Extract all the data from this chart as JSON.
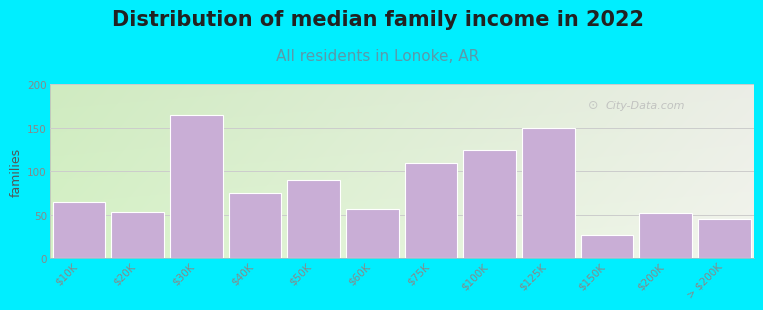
{
  "title": "Distribution of median family income in 2022",
  "subtitle": "All residents in Lonoke, AR",
  "ylabel": "families",
  "categories": [
    "$10K",
    "$20K",
    "$30K",
    "$40K",
    "$50K",
    "$60K",
    "$75K",
    "$100K",
    "$125K",
    "$150K",
    "$200K",
    "> $200K"
  ],
  "values": [
    65,
    53,
    165,
    75,
    90,
    57,
    110,
    125,
    150,
    27,
    52,
    45
  ],
  "bar_color": "#c9aed6",
  "bar_edgecolor": "#c9aed6",
  "background_outer": "#00eeff",
  "background_plot_topleft": "#d8f0c0",
  "background_plot_right": "#f0f0e8",
  "ylim": [
    0,
    200
  ],
  "yticks": [
    0,
    50,
    100,
    150,
    200
  ],
  "title_fontsize": 15,
  "subtitle_fontsize": 11,
  "subtitle_color": "#5a9aaa",
  "title_color": "#222222",
  "ylabel_fontsize": 9,
  "watermark_text": "City-Data.com",
  "grid_color": "#cccccc",
  "tick_label_fontsize": 7.5,
  "tick_color": "#888888",
  "bar_width": 0.9
}
